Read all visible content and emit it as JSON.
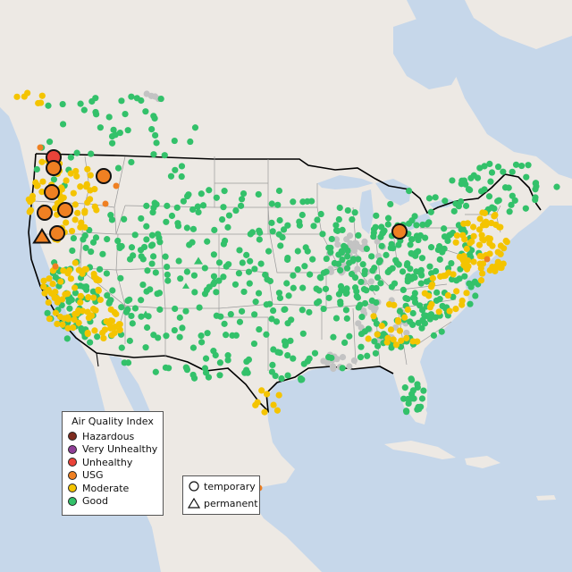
{
  "colors": {
    "ocean": "#c6d7ea",
    "land": "#ede9e4",
    "lakes": "#c6d7ea",
    "state_border": "#9a9a9a",
    "country_border": "#000000",
    "hazardous": "#7e2c1f",
    "very_unhealthy": "#8f3f97",
    "unhealthy": "#ea4339",
    "usg": "#ef8022",
    "moderate": "#f4c400",
    "good": "#33c16a",
    "no_data": "#c3c3c3"
  },
  "legend": {
    "title": "Air Quality Index",
    "categories": [
      {
        "key": "hazardous",
        "label": "Hazardous",
        "color": "#7e2c1f"
      },
      {
        "key": "very_unhealthy",
        "label": "Very Unhealthy",
        "color": "#8f3f97"
      },
      {
        "key": "unhealthy",
        "label": "Unhealthy",
        "color": "#ea4339"
      },
      {
        "key": "usg",
        "label": "USG",
        "color": "#ef8022"
      },
      {
        "key": "moderate",
        "label": "Moderate",
        "color": "#f4c400"
      },
      {
        "key": "good",
        "label": "Good",
        "color": "#33c16a"
      }
    ]
  },
  "site_legend": {
    "temporary_label": "temporary",
    "permanent_label": "permanent"
  }
}
